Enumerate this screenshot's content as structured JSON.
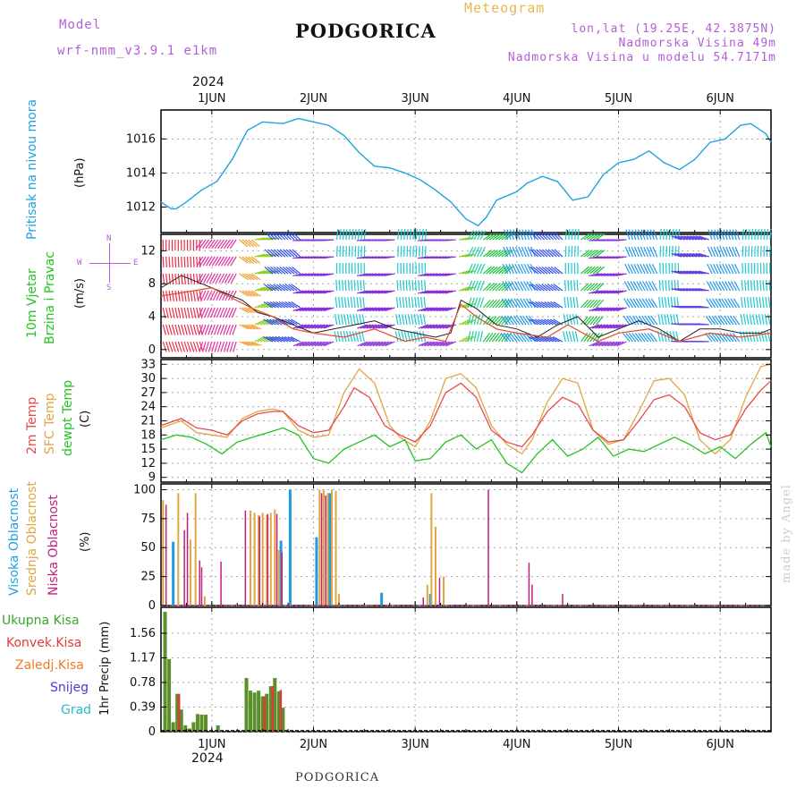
{
  "header": {
    "model_label": "Model",
    "model_name": "wrf-nmm_v3.9.1 e1km",
    "title": "PODGORICA",
    "meteogram_label": "Meteogram",
    "coords": "lon,lat (19.25E, 42.3875N)",
    "altitude": "Nadmorska Visina 49m",
    "model_altitude": "Nadmorska Visina u modelu 54.7171m",
    "year_top": "2024",
    "year_bottom": "2024"
  },
  "footer": {
    "station": "PODGORICA",
    "credit": "made by Angel"
  },
  "day_labels": [
    "1JUN",
    "2JUN",
    "3JUN",
    "4JUN",
    "5JUN",
    "6JUN"
  ],
  "panel_labels": {
    "pressure": "Pritisak na nivou mora",
    "pressure_unit": "(hPa)",
    "wind_a": "10m Vjetar",
    "wind_b": "Brzina i Pravac",
    "wind_unit": "(m/s)",
    "temp_a": "2m Temp",
    "temp_b": "SFC Temp",
    "temp_c": "dewpt Temp",
    "temp_unit": "(C)",
    "cloud_a": "Visoka Oblacnost",
    "cloud_b": "Srednja Oblacnost",
    "cloud_c": "Niska Oblacnost",
    "cloud_unit": "(%)",
    "precip_unit": "1hr Precip (mm)",
    "compass_n": "N",
    "compass_e": "E",
    "compass_w": "W",
    "compass_s": "S"
  },
  "precip_legend": [
    {
      "label": "Ukupna Kisa",
      "color": "#3aa62a"
    },
    {
      "label": "Konvek.Kisa",
      "color": "#e03a3a"
    },
    {
      "label": "Zaledj.Kisa",
      "color": "#f07a2a"
    },
    {
      "label": "Snijeg",
      "color": "#4a3ad6"
    },
    {
      "label": "Grad",
      "color": "#2ab8c8"
    }
  ],
  "colors": {
    "pressure": "#1fa3e0",
    "t2m": "#e84a4a",
    "tsfc": "#e0a640",
    "dewpt": "#22c422",
    "cloud_high": "#1f9be0",
    "cloud_mid": "#e0a640",
    "cloud_low": "#c21f7a",
    "grid": "#aaaaaa",
    "precip_total": "#5a8f2a"
  },
  "chart_data": [
    {
      "type": "line",
      "name": "pressure",
      "title": "Pritisak na nivou mora",
      "ylabel": "(hPa)",
      "xlim": [
        0.5,
        6.5
      ],
      "ylim": [
        1010.5,
        1017.7
      ],
      "yticks": [
        1012,
        1014,
        1016
      ],
      "series": [
        {
          "name": "Pritisak na nivou mora",
          "x": [
            0.5,
            0.6,
            0.65,
            0.75,
            0.9,
            1.05,
            1.2,
            1.35,
            1.5,
            1.7,
            1.85,
            2.0,
            2.15,
            2.3,
            2.45,
            2.6,
            2.75,
            2.9,
            3.05,
            3.2,
            3.35,
            3.5,
            3.62,
            3.7,
            3.8,
            4.0,
            4.1,
            4.25,
            4.4,
            4.55,
            4.7,
            4.85,
            5.0,
            5.15,
            5.3,
            5.45,
            5.6,
            5.75,
            5.9,
            6.05,
            6.2,
            6.3,
            6.45,
            6.5
          ],
          "y": [
            1012.3,
            1011.9,
            1011.9,
            1012.3,
            1013.0,
            1013.5,
            1014.8,
            1016.5,
            1017.0,
            1016.9,
            1017.2,
            1017.0,
            1016.8,
            1016.2,
            1015.2,
            1014.4,
            1014.3,
            1014.0,
            1013.6,
            1013.0,
            1012.3,
            1011.3,
            1010.9,
            1011.4,
            1012.4,
            1012.9,
            1013.4,
            1013.8,
            1013.5,
            1012.4,
            1012.6,
            1013.9,
            1014.6,
            1014.8,
            1015.3,
            1014.6,
            1014.2,
            1014.8,
            1015.8,
            1016.0,
            1016.8,
            1016.9,
            1016.3,
            1015.8
          ]
        }
      ]
    },
    {
      "type": "line",
      "name": "wind",
      "title": "10m Vjetar Brzina i Pravac",
      "ylabel": "(m/s)",
      "xlim": [
        0.5,
        6.5
      ],
      "ylim": [
        -1,
        14
      ],
      "yticks": [
        0,
        4,
        8,
        12
      ],
      "series": [
        {
          "name": "speed",
          "x": [
            0.5,
            0.7,
            0.9,
            1.1,
            1.3,
            1.45,
            1.6,
            1.8,
            2.0,
            2.2,
            2.4,
            2.6,
            2.8,
            3.0,
            3.2,
            3.35,
            3.45,
            3.6,
            3.8,
            4.0,
            4.2,
            4.4,
            4.6,
            4.8,
            5.0,
            5.2,
            5.4,
            5.6,
            5.8,
            6.0,
            6.2,
            6.4,
            6.5
          ],
          "y": [
            7.5,
            9.0,
            8.0,
            7.0,
            6.0,
            4.5,
            4.0,
            3.0,
            2.0,
            2.5,
            3.0,
            3.5,
            2.5,
            2.0,
            1.5,
            2.0,
            6.0,
            5.0,
            3.0,
            2.5,
            1.5,
            3.0,
            4.0,
            1.5,
            2.5,
            3.5,
            2.5,
            1.0,
            2.5,
            2.5,
            2.0,
            2.0,
            2.5
          ]
        },
        {
          "name": "gust",
          "x": [
            0.5,
            1.0,
            1.4,
            1.6,
            1.8,
            2.0,
            2.3,
            2.6,
            2.9,
            3.1,
            3.3,
            3.45,
            3.6,
            3.8,
            4.0,
            4.3,
            4.5,
            4.8,
            5.0,
            5.3,
            5.6,
            5.9,
            6.2,
            6.5
          ],
          "y": [
            6.5,
            7.5,
            5.0,
            4.0,
            2.5,
            2.0,
            1.5,
            2.5,
            1.0,
            1.5,
            1.0,
            5.5,
            4.0,
            2.5,
            2.0,
            1.5,
            3.0,
            1.0,
            2.0,
            2.5,
            1.0,
            2.0,
            1.5,
            2.0
          ]
        }
      ]
    },
    {
      "type": "line",
      "name": "temperature",
      "title": "2m Temp / SFC Temp / dewpt Temp",
      "ylabel": "(C)",
      "xlim": [
        0.5,
        6.5
      ],
      "ylim": [
        8,
        34
      ],
      "yticks": [
        9,
        12,
        15,
        18,
        21,
        24,
        27,
        30,
        33
      ],
      "series": [
        {
          "name": "2m Temp",
          "x": [
            0.5,
            0.7,
            0.85,
            1.0,
            1.15,
            1.3,
            1.45,
            1.6,
            1.7,
            1.85,
            2.0,
            2.15,
            2.3,
            2.4,
            2.55,
            2.7,
            2.85,
            3.0,
            3.15,
            3.3,
            3.45,
            3.6,
            3.75,
            3.9,
            4.05,
            4.15,
            4.3,
            4.45,
            4.6,
            4.75,
            4.9,
            5.05,
            5.2,
            5.35,
            5.5,
            5.65,
            5.8,
            5.95,
            6.1,
            6.25,
            6.4,
            6.5
          ],
          "y": [
            20,
            21.5,
            19.5,
            19,
            18,
            21,
            22.5,
            23,
            23,
            20,
            18.5,
            19,
            24,
            28,
            26,
            20,
            18,
            16.5,
            20,
            27,
            29,
            26,
            19,
            16.5,
            15.5,
            18,
            23,
            26,
            24.5,
            19,
            16.5,
            17,
            21,
            25.5,
            26.5,
            24,
            18.5,
            17,
            18,
            23.5,
            27.5,
            29.5
          ]
        },
        {
          "name": "SFC Temp",
          "x": [
            0.5,
            0.7,
            0.85,
            1.0,
            1.15,
            1.3,
            1.45,
            1.6,
            1.7,
            1.85,
            2.0,
            2.15,
            2.3,
            2.45,
            2.6,
            2.75,
            2.85,
            3.0,
            3.15,
            3.3,
            3.45,
            3.6,
            3.75,
            3.9,
            4.05,
            4.15,
            4.3,
            4.45,
            4.6,
            4.75,
            4.9,
            5.05,
            5.2,
            5.35,
            5.5,
            5.65,
            5.8,
            5.95,
            6.1,
            6.25,
            6.4,
            6.5
          ],
          "y": [
            19.5,
            21,
            18.5,
            18,
            17.5,
            21.5,
            23,
            23.5,
            23,
            19,
            17.5,
            18,
            27,
            32,
            29,
            20,
            17.5,
            15.5,
            21,
            30,
            31,
            28,
            20,
            16,
            14,
            17,
            25,
            30,
            29,
            19,
            16,
            17,
            23,
            29.5,
            30,
            26.5,
            17,
            14,
            17,
            26,
            32.5,
            33
          ]
        },
        {
          "name": "dewpt Temp",
          "x": [
            0.5,
            0.65,
            0.8,
            0.95,
            1.1,
            1.25,
            1.4,
            1.55,
            1.7,
            1.85,
            2.0,
            2.15,
            2.3,
            2.45,
            2.6,
            2.75,
            2.9,
            3.0,
            3.15,
            3.3,
            3.45,
            3.6,
            3.75,
            3.9,
            4.05,
            4.2,
            4.35,
            4.5,
            4.65,
            4.8,
            4.95,
            5.1,
            5.25,
            5.4,
            5.55,
            5.7,
            5.85,
            6.0,
            6.15,
            6.3,
            6.45,
            6.5
          ],
          "y": [
            17,
            18,
            17.5,
            16,
            14,
            16.5,
            17.5,
            18.5,
            19.5,
            18,
            13,
            12,
            15,
            16.5,
            18,
            15.5,
            17,
            12.5,
            13,
            16.5,
            18,
            15,
            17,
            12,
            10,
            14,
            17,
            13.5,
            15,
            17.5,
            13.5,
            15,
            14.5,
            16,
            17.5,
            16,
            14,
            15.5,
            13,
            16,
            18.5,
            15.5
          ]
        }
      ]
    },
    {
      "type": "bar",
      "name": "cloud",
      "title": "Visoka / Srednja / Niska Oblacnost",
      "ylabel": "(%)",
      "xlim": [
        0.5,
        6.5
      ],
      "ylim": [
        0,
        105
      ],
      "yticks": [
        0,
        25,
        50,
        75,
        100
      ],
      "series": [
        {
          "name": "Visoka Oblacnost",
          "x": [
            0.62,
            1.68,
            1.77,
            2.03,
            2.16,
            2.67,
            3.15
          ],
          "values": [
            55,
            56,
            100,
            59,
            97,
            11,
            10
          ]
        },
        {
          "name": "Srednja Oblacnost",
          "x": [
            0.52,
            0.67,
            0.79,
            0.84,
            0.93,
            1.38,
            1.42,
            1.46,
            1.5,
            1.54,
            1.58,
            1.62,
            1.66,
            2.06,
            2.1,
            2.14,
            2.18,
            2.22,
            2.25,
            3.12,
            3.16,
            3.2,
            3.28
          ],
          "values": [
            91,
            97,
            57,
            97,
            8,
            82,
            80,
            78,
            80,
            78,
            80,
            83,
            48,
            100,
            100,
            97,
            100,
            99,
            10,
            18,
            97,
            68,
            25
          ]
        },
        {
          "name": "Niska Oblacnost",
          "x": [
            0.55,
            0.73,
            0.76,
            0.88,
            0.9,
            1.09,
            1.33,
            1.47,
            1.55,
            1.64,
            1.69,
            2.08,
            2.12,
            3.08,
            3.24,
            3.72,
            4.12,
            4.15,
            4.45
          ],
          "values": [
            87,
            65,
            80,
            39,
            33,
            38,
            82,
            77,
            79,
            79,
            46,
            97,
            95,
            7,
            24,
            100,
            37,
            18,
            10
          ]
        }
      ]
    },
    {
      "type": "bar",
      "name": "precipitation",
      "title": "1hr Precip",
      "ylabel": "1hr Precip (mm)",
      "xlim": [
        0.5,
        6.5
      ],
      "ylim": [
        0,
        1.97
      ],
      "yticks": [
        0,
        0.39,
        0.78,
        1.17,
        1.56
      ],
      "series": [
        {
          "name": "Ukupna Kisa",
          "x": [
            0.54,
            0.58,
            0.62,
            0.66,
            0.7,
            0.74,
            0.78,
            0.82,
            0.86,
            0.9,
            0.94,
            1.06,
            1.34,
            1.38,
            1.42,
            1.46,
            1.5,
            1.54,
            1.58,
            1.62,
            1.66,
            1.7
          ],
          "values": [
            1.9,
            1.15,
            0.15,
            0.6,
            0.35,
            0.1,
            0.05,
            0.15,
            0.28,
            0.27,
            0.27,
            0.1,
            0.85,
            0.65,
            0.62,
            0.65,
            0.56,
            0.6,
            0.72,
            0.85,
            0.64,
            0.38
          ]
        },
        {
          "name": "Konvek.Kisa",
          "x": [
            0.66,
            1.5,
            1.58,
            1.66
          ],
          "values": [
            0.6,
            0.56,
            0.72,
            0.66
          ]
        }
      ]
    }
  ]
}
